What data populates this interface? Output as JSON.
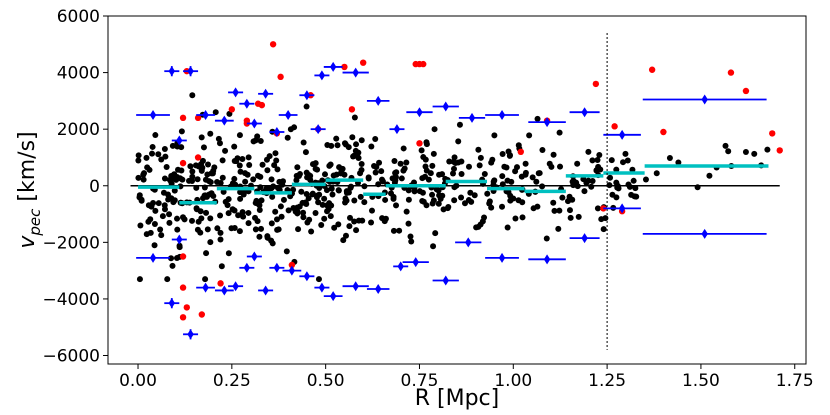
{
  "chart_data": {
    "type": "scatter",
    "xlabel": "R [Mpc]",
    "ylabel_main": "v",
    "ylabel_sub": "pec",
    "ylabel_unit": " [km/s]",
    "xlim": [
      -0.08,
      1.78
    ],
    "ylim": [
      -6300,
      6000
    ],
    "xticks": [
      0.0,
      0.25,
      0.5,
      0.75,
      1.0,
      1.25,
      1.5,
      1.75
    ],
    "xtick_labels": [
      "0.00",
      "0.25",
      "0.50",
      "0.75",
      "1.00",
      "1.25",
      "1.50",
      "1.75"
    ],
    "yticks": [
      -6000,
      -4000,
      -2000,
      0,
      2000,
      4000,
      6000
    ],
    "ytick_labels": [
      "−6000",
      "−4000",
      "−2000",
      "0",
      "2000",
      "4000",
      "6000"
    ],
    "grid": false,
    "colors": {
      "members": "#000000",
      "outliers": "#ff0000",
      "sigma_bins": "#0000ff",
      "mean_profile": "#00c0c0",
      "reference": "#000000",
      "radius_marker": "#000000"
    },
    "reference_line": {
      "y": 0,
      "x_range": [
        -0.02,
        1.71
      ]
    },
    "vertical_line": {
      "x": 1.25,
      "y_range": [
        -5800,
        5400
      ]
    },
    "mean_profile": [
      {
        "x0": 0.0,
        "x1": 0.11,
        "y": -50
      },
      {
        "x0": 0.11,
        "x1": 0.21,
        "y": -600
      },
      {
        "x0": 0.21,
        "x1": 0.31,
        "y": -100
      },
      {
        "x0": 0.31,
        "x1": 0.41,
        "y": -250
      },
      {
        "x0": 0.41,
        "x1": 0.5,
        "y": 50
      },
      {
        "x0": 0.5,
        "x1": 0.6,
        "y": 200
      },
      {
        "x0": 0.6,
        "x1": 0.66,
        "y": -300
      },
      {
        "x0": 0.66,
        "x1": 0.82,
        "y": 0
      },
      {
        "x0": 0.82,
        "x1": 0.93,
        "y": 150
      },
      {
        "x0": 0.93,
        "x1": 1.03,
        "y": -100
      },
      {
        "x0": 1.03,
        "x1": 1.14,
        "y": -200
      },
      {
        "x0": 1.14,
        "x1": 1.24,
        "y": 350
      },
      {
        "x0": 1.24,
        "x1": 1.35,
        "y": 450
      },
      {
        "x0": 1.35,
        "x1": 1.68,
        "y": 700
      }
    ],
    "sigma_points": [
      {
        "x": 0.04,
        "y": 2500,
        "xerr": 0.045,
        "yerr": 60
      },
      {
        "x": 0.04,
        "y": -2550,
        "xerr": 0.045,
        "yerr": 60
      },
      {
        "x": 0.09,
        "y": 4050,
        "xerr": 0.02,
        "yerr": 180
      },
      {
        "x": 0.14,
        "y": 4050,
        "xerr": 0.02,
        "yerr": 180
      },
      {
        "x": 0.09,
        "y": -4150,
        "xerr": 0.02,
        "yerr": 180
      },
      {
        "x": 0.14,
        "y": -5250,
        "xerr": 0.02,
        "yerr": 180
      },
      {
        "x": 0.11,
        "y": 1600,
        "xerr": 0.02,
        "yerr": 120
      },
      {
        "x": 0.11,
        "y": -1900,
        "xerr": 0.02,
        "yerr": 120
      },
      {
        "x": 0.18,
        "y": 2500,
        "xerr": 0.025,
        "yerr": 120
      },
      {
        "x": 0.18,
        "y": -3600,
        "xerr": 0.025,
        "yerr": 120
      },
      {
        "x": 0.23,
        "y": 2300,
        "xerr": 0.025,
        "yerr": 120
      },
      {
        "x": 0.23,
        "y": -3700,
        "xerr": 0.025,
        "yerr": 120
      },
      {
        "x": 0.26,
        "y": 3300,
        "xerr": 0.02,
        "yerr": 120
      },
      {
        "x": 0.26,
        "y": -3550,
        "xerr": 0.02,
        "yerr": 120
      },
      {
        "x": 0.29,
        "y": 2900,
        "xerr": 0.02,
        "yerr": 120
      },
      {
        "x": 0.29,
        "y": -2900,
        "xerr": 0.02,
        "yerr": 120
      },
      {
        "x": 0.31,
        "y": 2200,
        "xerr": 0.02,
        "yerr": 120
      },
      {
        "x": 0.31,
        "y": -2500,
        "xerr": 0.02,
        "yerr": 120
      },
      {
        "x": 0.34,
        "y": 3250,
        "xerr": 0.02,
        "yerr": 120
      },
      {
        "x": 0.34,
        "y": -3700,
        "xerr": 0.02,
        "yerr": 120
      },
      {
        "x": 0.37,
        "y": 1900,
        "xerr": 0.02,
        "yerr": 120
      },
      {
        "x": 0.37,
        "y": -2900,
        "xerr": 0.02,
        "yerr": 120
      },
      {
        "x": 0.4,
        "y": 2500,
        "xerr": 0.025,
        "yerr": 120
      },
      {
        "x": 0.41,
        "y": -3000,
        "xerr": 0.025,
        "yerr": 120
      },
      {
        "x": 0.45,
        "y": 3200,
        "xerr": 0.02,
        "yerr": 120
      },
      {
        "x": 0.45,
        "y": -3200,
        "xerr": 0.02,
        "yerr": 120
      },
      {
        "x": 0.48,
        "y": 2000,
        "xerr": 0.02,
        "yerr": 120
      },
      {
        "x": 0.49,
        "y": -3600,
        "xerr": 0.02,
        "yerr": 120
      },
      {
        "x": 0.49,
        "y": 3900,
        "xerr": 0.02,
        "yerr": 120
      },
      {
        "x": 0.52,
        "y": 4200,
        "xerr": 0.025,
        "yerr": 120
      },
      {
        "x": 0.52,
        "y": -3900,
        "xerr": 0.025,
        "yerr": 120
      },
      {
        "x": 0.58,
        "y": 4000,
        "xerr": 0.035,
        "yerr": 120
      },
      {
        "x": 0.58,
        "y": -3550,
        "xerr": 0.035,
        "yerr": 120
      },
      {
        "x": 0.64,
        "y": 3000,
        "xerr": 0.03,
        "yerr": 120
      },
      {
        "x": 0.64,
        "y": -3650,
        "xerr": 0.03,
        "yerr": 120
      },
      {
        "x": 0.69,
        "y": 2000,
        "xerr": 0.02,
        "yerr": 120
      },
      {
        "x": 0.7,
        "y": -2850,
        "xerr": 0.02,
        "yerr": 120
      },
      {
        "x": 0.75,
        "y": 2600,
        "xerr": 0.035,
        "yerr": 120
      },
      {
        "x": 0.74,
        "y": -2700,
        "xerr": 0.035,
        "yerr": 120
      },
      {
        "x": 0.82,
        "y": 2800,
        "xerr": 0.035,
        "yerr": 120
      },
      {
        "x": 0.82,
        "y": -3350,
        "xerr": 0.035,
        "yerr": 120
      },
      {
        "x": 0.89,
        "y": 2400,
        "xerr": 0.035,
        "yerr": 120
      },
      {
        "x": 0.88,
        "y": -2000,
        "xerr": 0.035,
        "yerr": 120
      },
      {
        "x": 0.97,
        "y": 2500,
        "xerr": 0.045,
        "yerr": 120
      },
      {
        "x": 0.97,
        "y": -2550,
        "xerr": 0.045,
        "yerr": 120
      },
      {
        "x": 1.09,
        "y": 2250,
        "xerr": 0.05,
        "yerr": 120
      },
      {
        "x": 1.09,
        "y": -2600,
        "xerr": 0.05,
        "yerr": 120
      },
      {
        "x": 1.19,
        "y": 2600,
        "xerr": 0.04,
        "yerr": 120
      },
      {
        "x": 1.19,
        "y": -1850,
        "xerr": 0.04,
        "yerr": 120
      },
      {
        "x": 1.29,
        "y": 1800,
        "xerr": 0.05,
        "yerr": 120
      },
      {
        "x": 1.29,
        "y": -800,
        "xerr": 0.05,
        "yerr": 120
      },
      {
        "x": 1.51,
        "y": 3050,
        "xerr": 0.165,
        "yerr": 120
      },
      {
        "x": 1.51,
        "y": -1700,
        "xerr": 0.165,
        "yerr": 120
      }
    ],
    "outliers": [
      [
        0.12,
        2400
      ],
      [
        0.13,
        4050
      ],
      [
        0.16,
        2400
      ],
      [
        0.16,
        1000
      ],
      [
        0.12,
        800
      ],
      [
        0.12,
        -2500
      ],
      [
        0.12,
        -3600
      ],
      [
        0.13,
        -4300
      ],
      [
        0.12,
        -4650
      ],
      [
        0.17,
        -4550
      ],
      [
        0.22,
        -3450
      ],
      [
        0.25,
        2700
      ],
      [
        0.29,
        2300
      ],
      [
        0.29,
        2200
      ],
      [
        0.32,
        2900
      ],
      [
        0.33,
        2850
      ],
      [
        0.36,
        5000
      ],
      [
        0.38,
        3850
      ],
      [
        0.37,
        1850
      ],
      [
        0.41,
        -2800
      ],
      [
        0.46,
        3200
      ],
      [
        0.48,
        2000
      ],
      [
        0.55,
        4200
      ],
      [
        0.57,
        2700
      ],
      [
        0.6,
        4350
      ],
      [
        0.74,
        4300
      ],
      [
        0.75,
        4300
      ],
      [
        0.76,
        4300
      ],
      [
        0.75,
        1500
      ],
      [
        1.02,
        1200
      ],
      [
        1.09,
        2300
      ],
      [
        1.22,
        3600
      ],
      [
        1.24,
        -800
      ],
      [
        1.27,
        2100
      ],
      [
        1.29,
        -900
      ],
      [
        1.37,
        4100
      ],
      [
        1.4,
        1900
      ],
      [
        1.58,
        4000
      ],
      [
        1.62,
        3350
      ],
      [
        1.69,
        1850
      ],
      [
        1.71,
        1250
      ]
    ]
  }
}
